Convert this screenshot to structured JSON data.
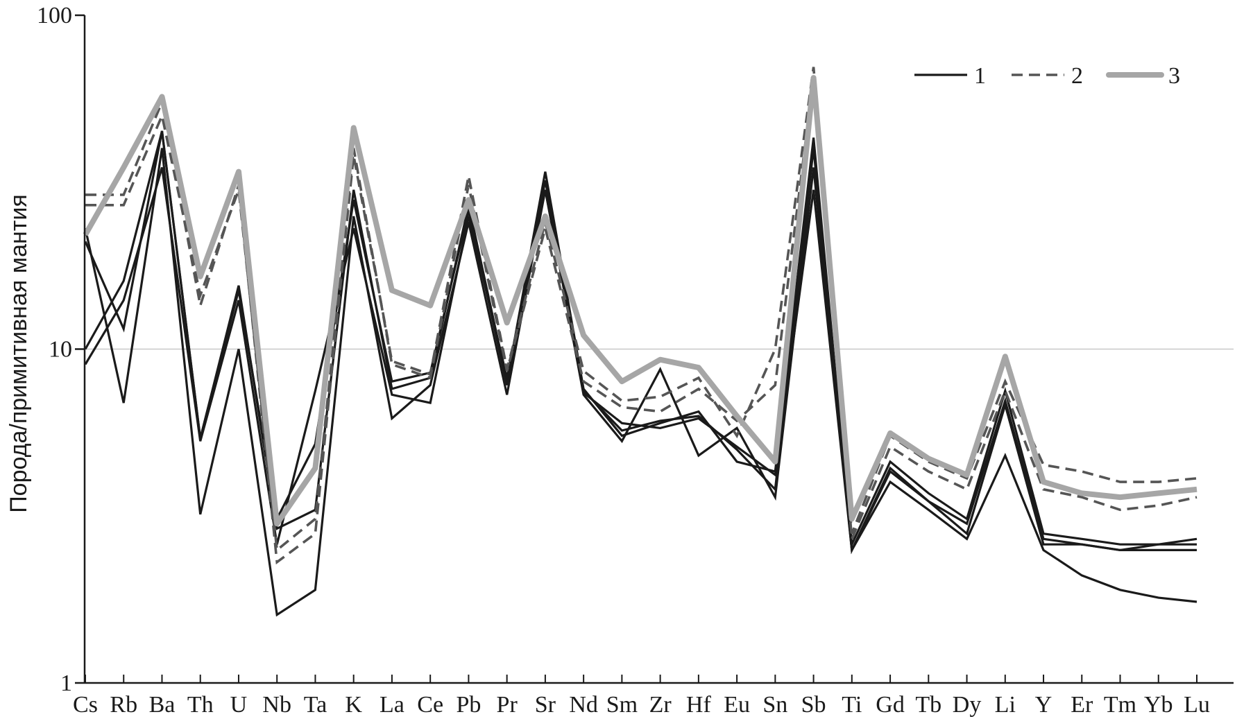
{
  "chart_data": {
    "type": "line",
    "ylabel": "Порода/примитивная мантия",
    "xlabel": "",
    "yscale": "log",
    "ylim": [
      1,
      100
    ],
    "yticks": [
      {
        "value": 1,
        "label": "1"
      },
      {
        "value": 10,
        "label": "10"
      },
      {
        "value": 100,
        "label": "100"
      }
    ],
    "gridlines_at": [
      10
    ],
    "legend_placement": "top-right",
    "legend": [
      {
        "label": "1",
        "style": "solid-thin-black"
      },
      {
        "label": "2",
        "style": "dashed-gray"
      },
      {
        "label": "3",
        "style": "solid-thick-lightgray"
      }
    ],
    "categories": [
      "Cs",
      "Rb",
      "Ba",
      "Th",
      "U",
      "Nb",
      "Ta",
      "K",
      "La",
      "Ce",
      "Pb",
      "Pr",
      "Sr",
      "Nd",
      "Sm",
      "Zr",
      "Hf",
      "Eu",
      "Sn",
      "Sb",
      "Ti",
      "Gd",
      "Tb",
      "Dy",
      "Li",
      "Y",
      "Er",
      "Tm",
      "Yb",
      "Lu"
    ],
    "colors": {
      "group1": "#1a1a1a",
      "group2": "#555555",
      "group3": "#a6a6a6",
      "grid": "#c8c8c8",
      "axis": "#1a1a1a"
    },
    "series": [
      {
        "group": 1,
        "values": [
          21,
          11.5,
          45,
          5.4,
          15.5,
          2.9,
          3.3,
          30,
          7.6,
          8.2,
          27,
          8,
          34,
          7.6,
          5.5,
          6,
          6.5,
          4.6,
          4.3,
          43,
          2.5,
          4.4,
          3.5,
          3,
          7,
          2.7,
          2.6,
          2.5,
          2.6,
          2.7
        ]
      },
      {
        "group": 1,
        "values": [
          10,
          16,
          45,
          5.4,
          15,
          3.1,
          5.2,
          28,
          8,
          8.5,
          26,
          7.8,
          32,
          7.5,
          5.7,
          6.1,
          6.3,
          5,
          3.8,
          40,
          2.6,
          4.6,
          3.7,
          3.1,
          7.5,
          2.8,
          2.7,
          2.6,
          2.6,
          2.6
        ]
      },
      {
        "group": 1,
        "values": [
          23,
          6.9,
          40,
          3.2,
          10,
          1.6,
          1.9,
          25,
          6.2,
          7.8,
          24,
          7.3,
          30,
          7.3,
          5.3,
          8.7,
          4.8,
          5.8,
          3.6,
          35,
          2.5,
          4,
          3.3,
          2.7,
          4.8,
          2.5,
          2.1,
          1.9,
          1.8,
          1.75
        ]
      },
      {
        "group": 1,
        "values": [
          9,
          14,
          35,
          5.3,
          14,
          2.6,
          7.5,
          23,
          7.3,
          6.9,
          25,
          8.2,
          30,
          7.4,
          6,
          5.8,
          6.2,
          5.1,
          4.2,
          30,
          2.5,
          4.3,
          3.5,
          2.8,
          6.8,
          2.6,
          2.6,
          2.5,
          2.5,
          2.5
        ]
      },
      {
        "group": 2,
        "values": [
          29,
          29,
          55,
          13.5,
          31,
          2.3,
          2.8,
          38,
          9.2,
          8.4,
          33,
          8.7,
          24,
          8.6,
          7,
          7.2,
          8.2,
          5.5,
          10,
          70,
          2.8,
          5.5,
          4.6,
          4.1,
          8,
          4.5,
          4.3,
          4,
          4,
          4.1
        ]
      },
      {
        "group": 2,
        "values": [
          27,
          27,
          50,
          14.5,
          30,
          2.5,
          3.1,
          40,
          9,
          8.2,
          31,
          8.6,
          23,
          8,
          6.7,
          6.5,
          7.6,
          6.1,
          7.8,
          65,
          2.7,
          5.1,
          4.3,
          3.8,
          7.5,
          3.8,
          3.6,
          3.3,
          3.4,
          3.6
        ]
      },
      {
        "group": 3,
        "values": [
          22,
          35,
          57,
          16.5,
          34,
          3,
          4.4,
          46,
          15,
          13.5,
          28,
          12,
          25,
          11,
          8,
          9.3,
          8.8,
          6.3,
          4.6,
          65,
          3.1,
          5.6,
          4.7,
          4.2,
          9.5,
          4,
          3.7,
          3.6,
          3.7,
          3.8
        ]
      }
    ]
  }
}
